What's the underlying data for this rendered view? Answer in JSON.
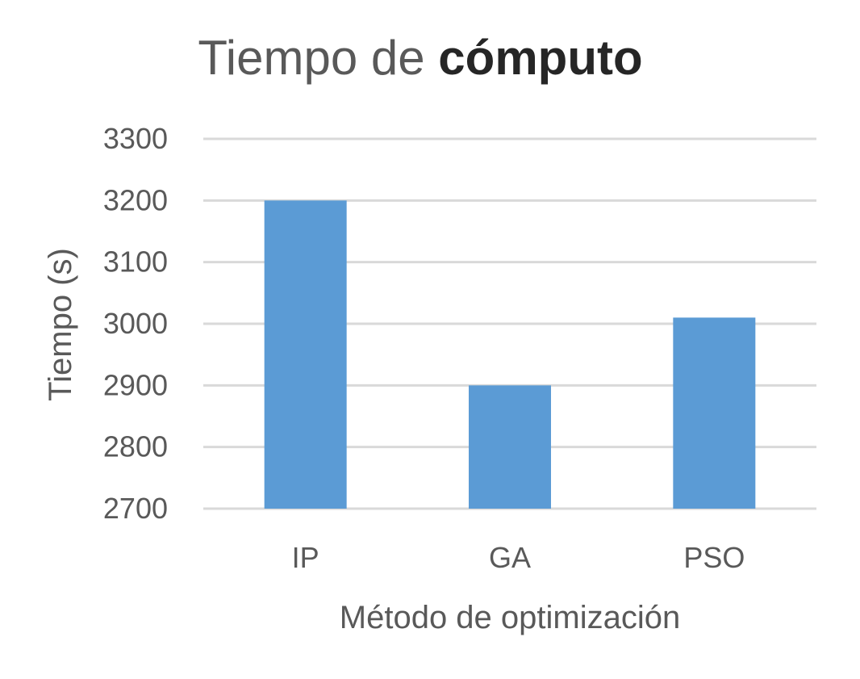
{
  "chart_data": {
    "type": "bar",
    "title": "Tiempo de cómputo",
    "title_parts": [
      "Tiempo de ",
      "cómputo"
    ],
    "xlabel": "Método de optimización",
    "ylabel": "Tiempo (s)",
    "categories": [
      "IP",
      "GA",
      "PSO"
    ],
    "values": [
      3200,
      2900,
      3010
    ],
    "ylim": [
      2700,
      3300
    ],
    "yticks": [
      2700,
      2800,
      2900,
      3000,
      3100,
      3200,
      3300
    ],
    "grid": true,
    "legend": "none",
    "colors": {
      "bar": "#5b9bd5",
      "grid": "#d9d9d9",
      "text": "#595959",
      "title_emphasis": "#262626"
    }
  }
}
